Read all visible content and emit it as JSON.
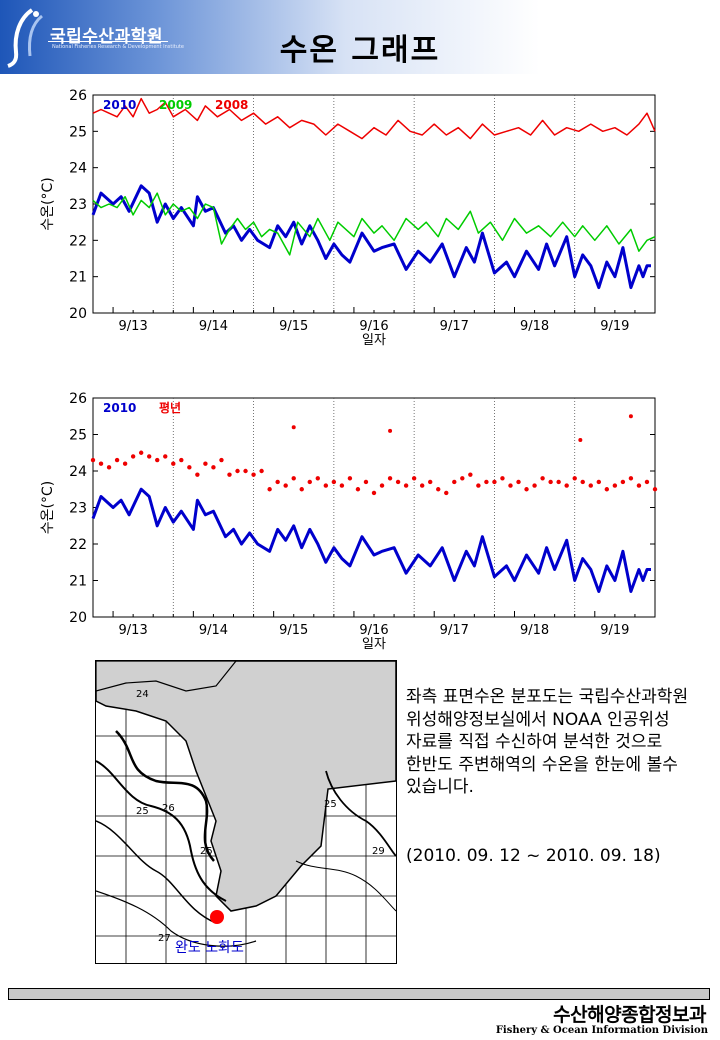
{
  "header": {
    "org_name": "국립수산과학원",
    "org_subtitle": "National Fisheries Research & Development Institute",
    "page_title": "수온 그래프",
    "colors": {
      "brand": "#1e56b8"
    }
  },
  "chart_data": [
    {
      "type": "line",
      "xlabel": "일자",
      "ylabel": "수온(°C)",
      "xlim": [
        12.75,
        19.75
      ],
      "ylim": [
        20,
        26
      ],
      "yticks": [
        "20",
        "21",
        "22",
        "23",
        "24",
        "25",
        "26"
      ],
      "xticks": [
        {
          "at": 13.25,
          "label": "9/13"
        },
        {
          "at": 14.25,
          "label": "9/14"
        },
        {
          "at": 15.25,
          "label": "9/15"
        },
        {
          "at": 16.25,
          "label": "9/16"
        },
        {
          "at": 17.25,
          "label": "9/17"
        },
        {
          "at": 18.25,
          "label": "9/18"
        },
        {
          "at": 19.25,
          "label": "9/19"
        }
      ],
      "day_separators": [
        13.75,
        14.75,
        15.75,
        16.75,
        17.75,
        18.75
      ],
      "x_unit_note": "day of September 2010",
      "series": [
        {
          "name": "2010",
          "color": "#0000cc",
          "x": [
            12.75,
            12.85,
            13.0,
            13.1,
            13.2,
            13.35,
            13.45,
            13.55,
            13.65,
            13.75,
            13.85,
            14.0,
            14.05,
            14.15,
            14.25,
            14.4,
            14.5,
            14.6,
            14.7,
            14.8,
            14.95,
            15.05,
            15.15,
            15.25,
            15.35,
            15.45,
            15.55,
            15.65,
            15.75,
            15.85,
            15.95,
            16.1,
            16.25,
            16.35,
            16.5,
            16.65,
            16.8,
            16.95,
            17.1,
            17.25,
            17.4,
            17.5,
            17.6,
            17.75,
            17.9,
            18.0,
            18.15,
            18.3,
            18.4,
            18.5,
            18.65,
            18.75,
            18.85,
            18.95,
            19.05,
            19.15,
            19.25,
            19.35,
            19.45,
            19.55,
            19.6,
            19.65,
            19.7
          ],
          "values": [
            22.7,
            23.3,
            23.0,
            23.2,
            22.8,
            23.5,
            23.3,
            22.5,
            23.0,
            22.6,
            22.9,
            22.4,
            23.2,
            22.8,
            22.9,
            22.2,
            22.4,
            22.0,
            22.3,
            22.0,
            21.8,
            22.4,
            22.1,
            22.5,
            21.9,
            22.4,
            22.0,
            21.5,
            21.9,
            21.6,
            21.4,
            22.2,
            21.7,
            21.8,
            21.9,
            21.2,
            21.7,
            21.4,
            21.9,
            21.0,
            21.8,
            21.4,
            22.2,
            21.1,
            21.4,
            21.0,
            21.7,
            21.2,
            21.9,
            21.3,
            22.1,
            21.0,
            21.6,
            21.3,
            20.7,
            21.4,
            21.0,
            21.8,
            20.7,
            21.3,
            21.0,
            21.3,
            21.3
          ]
        },
        {
          "name": "2009",
          "color": "#00cc00",
          "x": [
            12.75,
            12.85,
            12.95,
            13.05,
            13.15,
            13.25,
            13.35,
            13.45,
            13.55,
            13.65,
            13.75,
            13.85,
            13.95,
            14.05,
            14.15,
            14.25,
            14.35,
            14.45,
            14.55,
            14.65,
            14.75,
            14.85,
            14.95,
            15.05,
            15.2,
            15.3,
            15.45,
            15.55,
            15.7,
            15.8,
            16.0,
            16.1,
            16.25,
            16.35,
            16.5,
            16.65,
            16.8,
            16.9,
            17.05,
            17.15,
            17.3,
            17.45,
            17.55,
            17.7,
            17.85,
            18.0,
            18.15,
            18.3,
            18.45,
            18.6,
            18.75,
            18.85,
            19.0,
            19.15,
            19.3,
            19.45,
            19.55,
            19.65,
            19.75
          ],
          "values": [
            23.1,
            22.9,
            23.0,
            22.9,
            23.2,
            22.7,
            23.1,
            22.9,
            23.3,
            22.7,
            23.0,
            22.8,
            22.9,
            22.6,
            23.0,
            22.9,
            21.9,
            22.3,
            22.6,
            22.3,
            22.5,
            22.1,
            22.3,
            22.2,
            21.6,
            22.5,
            22.1,
            22.6,
            22.0,
            22.5,
            22.1,
            22.6,
            22.2,
            22.4,
            22.0,
            22.6,
            22.3,
            22.5,
            22.1,
            22.6,
            22.3,
            22.8,
            22.2,
            22.5,
            22.0,
            22.6,
            22.2,
            22.4,
            22.1,
            22.5,
            22.1,
            22.4,
            22.0,
            22.4,
            21.9,
            22.3,
            21.7,
            22.0,
            22.1
          ]
        },
        {
          "name": "2008",
          "color": "#ee0000",
          "x": [
            12.75,
            12.85,
            12.95,
            13.05,
            13.15,
            13.25,
            13.35,
            13.45,
            13.55,
            13.65,
            13.75,
            13.9,
            14.05,
            14.15,
            14.3,
            14.45,
            14.6,
            14.75,
            14.9,
            15.05,
            15.2,
            15.35,
            15.5,
            15.65,
            15.8,
            15.95,
            16.1,
            16.25,
            16.4,
            16.55,
            16.7,
            16.85,
            17.0,
            17.15,
            17.3,
            17.45,
            17.6,
            17.75,
            17.9,
            18.05,
            18.2,
            18.35,
            18.5,
            18.65,
            18.8,
            18.95,
            19.1,
            19.25,
            19.4,
            19.55,
            19.65,
            19.75
          ],
          "values": [
            25.5,
            25.6,
            25.5,
            25.4,
            25.7,
            25.4,
            25.9,
            25.5,
            25.6,
            25.8,
            25.4,
            25.6,
            25.3,
            25.7,
            25.4,
            25.6,
            25.3,
            25.5,
            25.2,
            25.4,
            25.1,
            25.3,
            25.2,
            24.9,
            25.2,
            25.0,
            24.8,
            25.1,
            24.9,
            25.3,
            25.0,
            24.9,
            25.2,
            24.9,
            25.1,
            24.8,
            25.2,
            24.9,
            25.0,
            25.1,
            24.9,
            25.3,
            24.9,
            25.1,
            25.0,
            25.2,
            25.0,
            25.1,
            24.9,
            25.2,
            25.5,
            25.0
          ]
        }
      ]
    },
    {
      "type": "line",
      "xlabel": "일자",
      "ylabel": "수온(°C)",
      "xlim": [
        12.75,
        19.75
      ],
      "ylim": [
        20,
        26
      ],
      "yticks": [
        "20",
        "21",
        "22",
        "23",
        "24",
        "25",
        "26"
      ],
      "xticks": [
        {
          "at": 13.25,
          "label": "9/13"
        },
        {
          "at": 14.25,
          "label": "9/14"
        },
        {
          "at": 15.25,
          "label": "9/15"
        },
        {
          "at": 16.25,
          "label": "9/16"
        },
        {
          "at": 17.25,
          "label": "9/17"
        },
        {
          "at": 18.25,
          "label": "9/18"
        },
        {
          "at": 19.25,
          "label": "9/19"
        }
      ],
      "day_separators": [
        13.75,
        14.75,
        15.75,
        16.75,
        17.75,
        18.75
      ],
      "series": [
        {
          "name": "2010",
          "color": "#0000cc",
          "x": [
            12.75,
            12.85,
            13.0,
            13.1,
            13.2,
            13.35,
            13.45,
            13.55,
            13.65,
            13.75,
            13.85,
            14.0,
            14.05,
            14.15,
            14.25,
            14.4,
            14.5,
            14.6,
            14.7,
            14.8,
            14.95,
            15.05,
            15.15,
            15.25,
            15.35,
            15.45,
            15.55,
            15.65,
            15.75,
            15.85,
            15.95,
            16.1,
            16.25,
            16.35,
            16.5,
            16.65,
            16.8,
            16.95,
            17.1,
            17.25,
            17.4,
            17.5,
            17.6,
            17.75,
            17.9,
            18.0,
            18.15,
            18.3,
            18.4,
            18.5,
            18.65,
            18.75,
            18.85,
            18.95,
            19.05,
            19.15,
            19.25,
            19.35,
            19.45,
            19.55,
            19.6,
            19.65,
            19.7
          ],
          "values": [
            22.7,
            23.3,
            23.0,
            23.2,
            22.8,
            23.5,
            23.3,
            22.5,
            23.0,
            22.6,
            22.9,
            22.4,
            23.2,
            22.8,
            22.9,
            22.2,
            22.4,
            22.0,
            22.3,
            22.0,
            21.8,
            22.4,
            22.1,
            22.5,
            21.9,
            22.4,
            22.0,
            21.5,
            21.9,
            21.6,
            21.4,
            22.2,
            21.7,
            21.8,
            21.9,
            21.2,
            21.7,
            21.4,
            21.9,
            21.0,
            21.8,
            21.4,
            22.2,
            21.1,
            21.4,
            21.0,
            21.7,
            21.2,
            21.9,
            21.3,
            22.1,
            21.0,
            21.6,
            21.3,
            20.7,
            21.4,
            21.0,
            21.8,
            20.7,
            21.3,
            21.0,
            21.3,
            21.3
          ]
        },
        {
          "name": "평년",
          "color": "#ee0000",
          "style": "dots",
          "x": [
            12.75,
            12.85,
            12.95,
            13.05,
            13.15,
            13.25,
            13.35,
            13.45,
            13.55,
            13.65,
            13.75,
            13.85,
            13.95,
            14.05,
            14.15,
            14.25,
            14.35,
            14.45,
            14.55,
            14.65,
            14.75,
            14.85,
            14.95,
            15.05,
            15.15,
            15.25,
            15.35,
            15.45,
            15.55,
            15.65,
            15.75,
            15.85,
            15.95,
            16.05,
            16.15,
            16.25,
            16.35,
            16.45,
            16.55,
            16.65,
            16.75,
            16.85,
            16.95,
            17.05,
            17.15,
            17.25,
            17.35,
            17.45,
            17.55,
            17.65,
            17.75,
            17.85,
            17.95,
            18.05,
            18.15,
            18.25,
            18.35,
            18.45,
            18.55,
            18.65,
            18.75,
            18.85,
            18.95,
            19.05,
            19.15,
            19.25,
            19.35,
            19.45,
            19.55,
            19.65,
            19.75
          ],
          "values": [
            24.3,
            24.2,
            24.1,
            24.3,
            24.2,
            24.4,
            24.5,
            24.4,
            24.3,
            24.4,
            24.2,
            24.3,
            24.1,
            23.9,
            24.2,
            24.1,
            24.3,
            23.9,
            24.0,
            24.0,
            23.9,
            24.0,
            23.5,
            23.7,
            23.6,
            23.8,
            23.5,
            23.7,
            23.8,
            23.6,
            23.7,
            23.6,
            23.8,
            23.5,
            23.7,
            23.4,
            23.6,
            23.8,
            23.7,
            23.6,
            23.8,
            23.6,
            23.7,
            23.5,
            23.4,
            23.7,
            23.8,
            23.9,
            23.6,
            23.7,
            23.7,
            23.8,
            23.6,
            23.7,
            23.5,
            23.6,
            23.8,
            23.7,
            23.7,
            23.6,
            23.8,
            23.7,
            23.6,
            23.7,
            23.5,
            23.6,
            23.7,
            23.8,
            23.6,
            23.7,
            23.5
          ]
        },
        {
          "name": "",
          "color": "#ee0000",
          "style": "outliers",
          "x": [
            15.25,
            16.45,
            18.82,
            19.45
          ],
          "values": [
            25.2,
            25.1,
            24.85,
            25.5
          ]
        }
      ]
    }
  ],
  "map": {
    "contour_labels": [
      "24",
      "25",
      "26",
      "25",
      "25",
      "29",
      "27"
    ],
    "location_label": "완도 노화도",
    "colors": {
      "marker": "#ff0000",
      "label": "#0000cc"
    }
  },
  "description": {
    "text": "좌측 표면수온 분포도는 국립수산과학원 위성해양정보실에서 NOAA 인공위성 자료를 직접 수신하여 분석한 것으로  한반도 주변해역의 수온을 한눈에 볼수 있습니다.",
    "period": "(2010. 09. 12 ~ 2010. 09. 18)"
  },
  "footer": {
    "division_ko": "수산해양종합정보과",
    "division_en": "Fishery & Ocean Information Division"
  }
}
